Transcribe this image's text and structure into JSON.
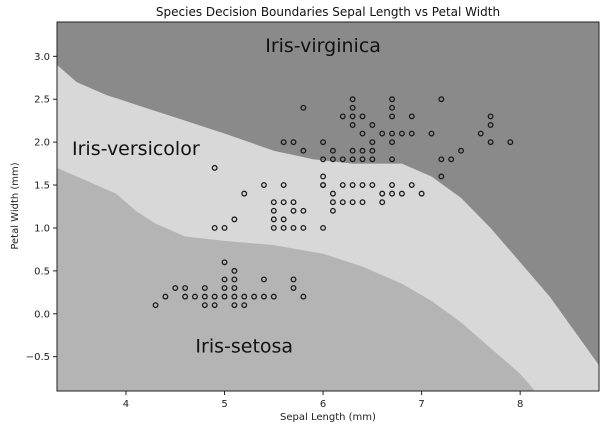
{
  "chart_data": {
    "type": "scatter",
    "title": "Species Decision Boundaries Sepal Length vs Petal Width",
    "xlabel": "Sepal Length (mm)",
    "ylabel": "Petal Width (mm)",
    "xlim": [
      3.3,
      8.8
    ],
    "ylim": [
      -0.9,
      3.4
    ],
    "xticks": [
      "4",
      "5",
      "6",
      "7",
      "8"
    ],
    "xtick_values": [
      4,
      5,
      6,
      7,
      8
    ],
    "yticks": [
      "3.0",
      "2.5",
      "2.0",
      "1.5",
      "1.0",
      "0.5",
      "0.0",
      "−0.5"
    ],
    "ytick_values": [
      3.0,
      2.5,
      2.0,
      1.5,
      1.0,
      0.5,
      0.0,
      -0.5
    ],
    "grid": false,
    "regions": [
      {
        "name": "Iris-virginica",
        "label_at": [
          6.0,
          3.05
        ],
        "color": "#8a8a8a"
      },
      {
        "name": "Iris-versicolor",
        "label_at": [
          4.1,
          1.85
        ],
        "color": "#d8d8d8"
      },
      {
        "name": "Iris-setosa",
        "label_at": [
          5.2,
          -0.45
        ],
        "color": "#b4b4b4"
      }
    ],
    "boundaries": {
      "setosa_upper": [
        [
          3.3,
          1.7
        ],
        [
          3.5,
          1.6
        ],
        [
          3.7,
          1.5
        ],
        [
          3.9,
          1.4
        ],
        [
          4.1,
          1.2
        ],
        [
          4.3,
          1.05
        ],
        [
          4.6,
          0.9
        ],
        [
          5.0,
          0.85
        ],
        [
          5.5,
          0.8
        ],
        [
          6.0,
          0.7
        ],
        [
          6.4,
          0.55
        ],
        [
          6.8,
          0.35
        ],
        [
          7.1,
          0.15
        ],
        [
          7.4,
          -0.1
        ],
        [
          7.7,
          -0.4
        ],
        [
          8.0,
          -0.7
        ],
        [
          8.15,
          -0.9
        ]
      ],
      "virginica_lower": [
        [
          3.3,
          2.9
        ],
        [
          3.5,
          2.7
        ],
        [
          3.8,
          2.55
        ],
        [
          4.2,
          2.4
        ],
        [
          4.6,
          2.25
        ],
        [
          5.0,
          2.1
        ],
        [
          5.5,
          1.9
        ],
        [
          5.9,
          1.8
        ],
        [
          6.3,
          1.75
        ],
        [
          6.8,
          1.75
        ],
        [
          7.1,
          1.6
        ],
        [
          7.4,
          1.35
        ],
        [
          7.7,
          1.0
        ],
        [
          8.0,
          0.6
        ],
        [
          8.3,
          0.2
        ],
        [
          8.55,
          -0.2
        ],
        [
          8.8,
          -0.6
        ]
      ]
    },
    "series": [
      {
        "points": [
          [
            4.3,
            0.1
          ],
          [
            4.4,
            0.2
          ],
          [
            4.5,
            0.3
          ],
          [
            4.6,
            0.2
          ],
          [
            4.6,
            0.3
          ],
          [
            4.7,
            0.2
          ],
          [
            4.8,
            0.1
          ],
          [
            4.8,
            0.2
          ],
          [
            4.8,
            0.3
          ],
          [
            4.9,
            0.1
          ],
          [
            4.9,
            0.2
          ],
          [
            5.0,
            0.2
          ],
          [
            5.0,
            0.3
          ],
          [
            5.0,
            0.4
          ],
          [
            5.0,
            0.6
          ],
          [
            5.1,
            0.1
          ],
          [
            5.1,
            0.2
          ],
          [
            5.1,
            0.3
          ],
          [
            5.1,
            0.4
          ],
          [
            5.1,
            0.5
          ],
          [
            5.2,
            0.1
          ],
          [
            5.2,
            0.2
          ],
          [
            5.3,
            0.2
          ],
          [
            5.4,
            0.2
          ],
          [
            5.4,
            0.4
          ],
          [
            5.5,
            0.2
          ],
          [
            5.7,
            0.3
          ],
          [
            5.7,
            0.4
          ],
          [
            5.8,
            0.2
          ]
        ]
      },
      {
        "points": [
          [
            4.9,
            1.0
          ],
          [
            5.0,
            1.0
          ],
          [
            5.1,
            1.1
          ],
          [
            5.2,
            1.4
          ],
          [
            5.4,
            1.5
          ],
          [
            5.5,
            1.0
          ],
          [
            5.5,
            1.1
          ],
          [
            5.5,
            1.2
          ],
          [
            5.5,
            1.3
          ],
          [
            5.6,
            1.0
          ],
          [
            5.6,
            1.1
          ],
          [
            5.6,
            1.3
          ],
          [
            5.6,
            1.5
          ],
          [
            5.7,
            1.0
          ],
          [
            5.7,
            1.2
          ],
          [
            5.7,
            1.3
          ],
          [
            5.8,
            1.0
          ],
          [
            5.8,
            1.2
          ],
          [
            6.0,
            1.0
          ],
          [
            6.0,
            1.5
          ],
          [
            6.0,
            1.6
          ],
          [
            6.1,
            1.2
          ],
          [
            6.1,
            1.3
          ],
          [
            6.1,
            1.4
          ],
          [
            6.2,
            1.3
          ],
          [
            6.2,
            1.5
          ],
          [
            6.3,
            1.3
          ],
          [
            6.3,
            1.5
          ],
          [
            6.4,
            1.3
          ],
          [
            6.4,
            1.5
          ],
          [
            6.5,
            1.5
          ],
          [
            6.6,
            1.3
          ],
          [
            6.6,
            1.4
          ],
          [
            6.7,
            1.4
          ],
          [
            6.7,
            1.5
          ],
          [
            6.8,
            1.4
          ],
          [
            6.9,
            1.5
          ],
          [
            7.0,
            1.4
          ]
        ]
      },
      {
        "points": [
          [
            5.8,
            2.4
          ],
          [
            5.6,
            2.0
          ],
          [
            5.7,
            2.0
          ],
          [
            5.8,
            1.9
          ],
          [
            6.0,
            1.8
          ],
          [
            6.1,
            1.8
          ],
          [
            6.2,
            1.8
          ],
          [
            6.3,
            1.8
          ],
          [
            6.4,
            1.8
          ],
          [
            6.5,
            1.8
          ],
          [
            6.7,
            1.8
          ],
          [
            6.1,
            1.9
          ],
          [
            6.3,
            1.9
          ],
          [
            6.4,
            1.9
          ],
          [
            6.5,
            1.9
          ],
          [
            6.5,
            2.0
          ],
          [
            6.4,
            2.1
          ],
          [
            6.3,
            2.2
          ],
          [
            6.4,
            2.3
          ],
          [
            6.5,
            2.2
          ],
          [
            6.3,
            2.3
          ],
          [
            6.3,
            2.4
          ],
          [
            6.3,
            2.5
          ],
          [
            6.7,
            2.0
          ],
          [
            6.7,
            2.1
          ],
          [
            6.7,
            2.3
          ],
          [
            6.7,
            2.4
          ],
          [
            6.7,
            2.5
          ],
          [
            6.8,
            2.1
          ],
          [
            6.9,
            2.1
          ],
          [
            6.9,
            2.3
          ],
          [
            7.1,
            2.1
          ],
          [
            7.2,
            1.6
          ],
          [
            7.2,
            1.8
          ],
          [
            7.2,
            2.5
          ],
          [
            7.3,
            1.8
          ],
          [
            7.4,
            1.9
          ],
          [
            7.6,
            2.1
          ],
          [
            7.7,
            2.0
          ],
          [
            7.7,
            2.2
          ],
          [
            7.7,
            2.3
          ],
          [
            7.9,
            2.0
          ],
          [
            6.0,
            1.5
          ],
          [
            4.9,
            1.7
          ],
          [
            6.6,
            2.1
          ],
          [
            6.2,
            2.3
          ],
          [
            6.0,
            2.0
          ]
        ]
      }
    ]
  }
}
